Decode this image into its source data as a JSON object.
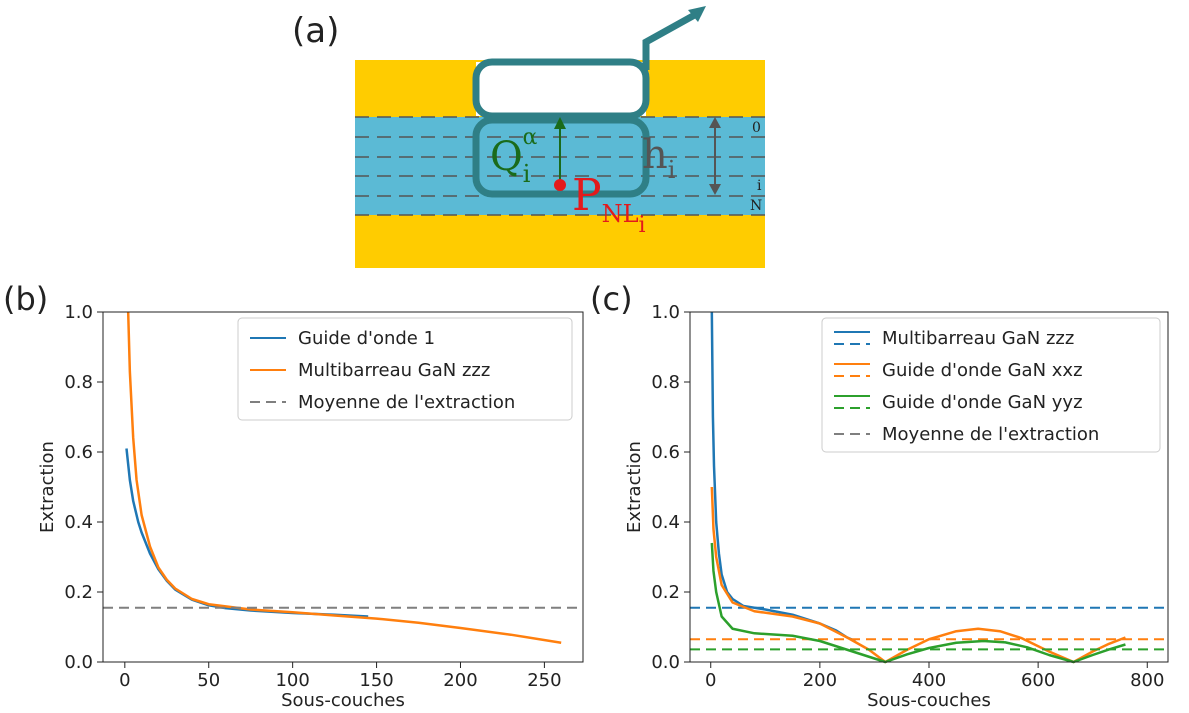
{
  "diagram": {
    "label": "(a)",
    "q": "Q",
    "q_sub": "i",
    "q_sup": "α",
    "h": "h",
    "h_sub": "i",
    "p": "P",
    "p_sub": "NL",
    "p_subsub": "i",
    "top_index": "0",
    "mid_index": "i",
    "bottom_index": "N"
  },
  "chart_data": [
    {
      "type": "line",
      "panel_label": "(b)",
      "x_label": "Sous-couches",
      "y_label": "Extraction",
      "xlim": [
        -13,
        273
      ],
      "ylim": [
        0,
        1
      ],
      "xticks": [
        0,
        50,
        100,
        150,
        200,
        250
      ],
      "yticks": [
        {
          "value": 0,
          "label": "0.0"
        },
        0.2,
        0.4,
        0.6,
        0.8,
        {
          "value": 1,
          "label": "1.0"
        }
      ],
      "legend": "upper right",
      "series": [
        {
          "name": "Guide d'onde 1",
          "color": "#1f77b4",
          "x": [
            1,
            3,
            5,
            8,
            10,
            15,
            20,
            25,
            30,
            40,
            50,
            60,
            75,
            100,
            125,
            145
          ],
          "values": [
            0.61,
            0.52,
            0.46,
            0.4,
            0.37,
            0.31,
            0.265,
            0.232,
            0.207,
            0.178,
            0.162,
            0.154,
            0.147,
            0.14,
            0.135,
            0.13
          ]
        },
        {
          "name": "Multibarreau GaN zzz",
          "color": "#ff7f0e",
          "x": [
            2,
            3,
            5,
            7,
            10,
            15,
            20,
            25,
            30,
            40,
            50,
            75,
            100,
            125,
            150,
            175,
            200,
            230,
            260
          ],
          "values": [
            1.0,
            0.83,
            0.64,
            0.52,
            0.42,
            0.33,
            0.27,
            0.235,
            0.21,
            0.18,
            0.165,
            0.15,
            0.142,
            0.133,
            0.124,
            0.112,
            0.097,
            0.078,
            0.055
          ]
        },
        {
          "name": "Moyenne de l'extraction",
          "color": "#7f7f7f",
          "mean": 0.155
        }
      ]
    },
    {
      "type": "line",
      "panel_label": "(c)",
      "x_label": "Sous-couches",
      "y_label": "Extraction",
      "xlim": [
        -38,
        838
      ],
      "ylim": [
        0,
        1
      ],
      "xticks": [
        0,
        200,
        400,
        600,
        800
      ],
      "yticks": [
        {
          "value": 0,
          "label": "0.0"
        },
        0.2,
        0.4,
        0.6,
        0.8,
        {
          "value": 1,
          "label": "1.0"
        }
      ],
      "legend": "upper right",
      "series": [
        {
          "name": "Multibarreau GaN zzz",
          "color": "#1f77b4",
          "mean": 0.155,
          "x": [
            2,
            4,
            6,
            10,
            15,
            20,
            30,
            40,
            60,
            100,
            150,
            200,
            230,
            250,
            265
          ],
          "values": [
            1.0,
            0.7,
            0.56,
            0.4,
            0.31,
            0.25,
            0.2,
            0.18,
            0.16,
            0.15,
            0.135,
            0.11,
            0.09,
            0.07,
            0.06
          ]
        },
        {
          "name": "Guide d'onde GaN xxz",
          "color": "#ff7f0e",
          "mean": 0.065,
          "x": [
            2,
            5,
            10,
            20,
            40,
            80,
            150,
            200,
            250,
            290,
            320,
            360,
            400,
            450,
            490,
            530,
            570,
            620,
            665,
            700,
            730,
            760
          ],
          "values": [
            0.5,
            0.38,
            0.3,
            0.22,
            0.17,
            0.145,
            0.13,
            0.11,
            0.07,
            0.035,
            0.0,
            0.035,
            0.065,
            0.088,
            0.095,
            0.088,
            0.068,
            0.03,
            0.0,
            0.03,
            0.052,
            0.07
          ]
        },
        {
          "name": "Guide d'onde GaN yyz",
          "color": "#2ca02c",
          "mean": 0.036,
          "x": [
            2,
            5,
            10,
            20,
            40,
            80,
            150,
            200,
            250,
            290,
            320,
            360,
            400,
            450,
            500,
            540,
            580,
            620,
            665,
            700,
            730,
            760
          ],
          "values": [
            0.34,
            0.26,
            0.2,
            0.13,
            0.095,
            0.082,
            0.075,
            0.06,
            0.035,
            0.015,
            0.0,
            0.022,
            0.04,
            0.055,
            0.06,
            0.056,
            0.042,
            0.02,
            0.0,
            0.02,
            0.036,
            0.05
          ]
        },
        {
          "name": "Moyenne de l'extraction",
          "color": "#7f7f7f"
        }
      ]
    }
  ]
}
